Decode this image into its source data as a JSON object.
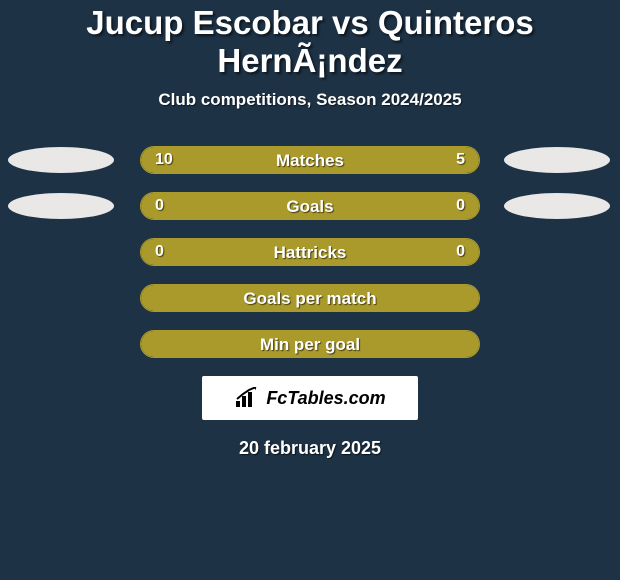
{
  "title": "Jucup Escobar vs Quinteros HernÃ¡ndez",
  "subtitle": "Club competitions, Season 2024/2025",
  "date": "20 february 2025",
  "watermark": "FcTables.com",
  "colors": {
    "background": "#1d3245",
    "text": "#ffffff",
    "bar_border": "#aa9a2c",
    "bar_empty": "#1d3245",
    "bar_left_fill": "#aa9a2c",
    "bar_right_fill": "#aa9a2c",
    "ellipse": "#e9e8e7",
    "watermark_bg": "#ffffff",
    "watermark_text": "#000000"
  },
  "rows": [
    {
      "label": "Matches",
      "left_value": "10",
      "right_value": "5",
      "left_pct": 66.7,
      "right_pct": 33.3,
      "show_ellipse": true,
      "show_values": true
    },
    {
      "label": "Goals",
      "left_value": "0",
      "right_value": "0",
      "left_pct": 100,
      "right_pct": 0,
      "show_ellipse": true,
      "show_values": true
    },
    {
      "label": "Hattricks",
      "left_value": "0",
      "right_value": "0",
      "left_pct": 100,
      "right_pct": 0,
      "show_ellipse": false,
      "show_values": true
    },
    {
      "label": "Goals per match",
      "left_value": "",
      "right_value": "",
      "left_pct": 100,
      "right_pct": 0,
      "show_ellipse": false,
      "show_values": false
    },
    {
      "label": "Min per goal",
      "left_value": "",
      "right_value": "",
      "left_pct": 100,
      "right_pct": 0,
      "show_ellipse": false,
      "show_values": false
    }
  ]
}
